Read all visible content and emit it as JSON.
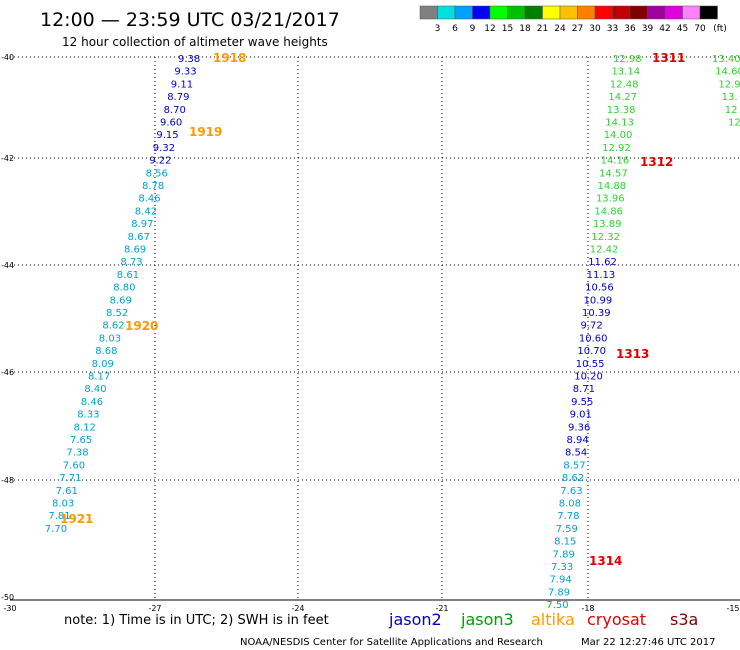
{
  "header": {
    "title": "12:00 — 23:59 UTC 03/21/2017",
    "subtitle": "12 hour collection of altimeter wave heights",
    "color_scale": {
      "labels": [
        "3",
        "6",
        "9",
        "12",
        "15",
        "18",
        "21",
        "24",
        "27",
        "30",
        "33",
        "36",
        "39",
        "42",
        "45",
        "70"
      ],
      "colors": [
        "#808080",
        "#00e0e0",
        "#00a0ff",
        "#0000ff",
        "#00ff00",
        "#00c000",
        "#008000",
        "#ffff00",
        "#ffc000",
        "#ff8000",
        "#ff0000",
        "#c00000",
        "#800000",
        "#a000a0",
        "#e000e0",
        "#ff80ff",
        "#000000"
      ],
      "unit": "(ft)"
    }
  },
  "axes": {
    "lat_labels": [
      "-40",
      "-42",
      "-44",
      "-46",
      "-48",
      "-50"
    ],
    "lon_labels": [
      "-30",
      "-27",
      "-24",
      "-21",
      "-18",
      "-15"
    ]
  },
  "track_colors": {
    "dark_blue": "#0000c8",
    "cyan": "#00a0d0",
    "green": "#30d030",
    "orange": "#ff9900",
    "red": "#e00000"
  },
  "tracks": {
    "west": {
      "dark_blue": [
        "9.38",
        "9.33",
        "9.11",
        "8.79",
        "8.70",
        "9.60",
        "9.15",
        "9.32",
        "9.22"
      ],
      "cyan": [
        "8.56",
        "8.78",
        "8.46",
        "8.42",
        "8.97",
        "8.67",
        "8.69",
        "8.73",
        "8.61",
        "8.80",
        "8.69",
        "8.52",
        "8.62",
        "8.03",
        "8.68",
        "8.09",
        "8.17",
        "8.40",
        "8.46",
        "8.33",
        "8.12",
        "7.65",
        "7.38",
        "7.60",
        "7.71",
        "7.61",
        "8.03",
        "7.81",
        "7.70"
      ]
    },
    "east": {
      "green": [
        "12.98",
        "13.14",
        "12.48",
        "14.27",
        "13.38",
        "14.13",
        "14.00",
        "12.92",
        "14.16",
        "14.57",
        "14.88",
        "13.96",
        "14.86",
        "13.89",
        "12.32",
        "12.42"
      ],
      "dark_blue": [
        "11.62",
        "11.13",
        "10.56",
        "10.99",
        "10.39",
        "9.72",
        "10.60",
        "10.70",
        "10.55",
        "10.20",
        "8.71",
        "9.55",
        "9.01",
        "9.36",
        "8.94",
        "8.54"
      ],
      "cyan": [
        "8.57",
        "8.62",
        "7.63",
        "8.08",
        "7.78",
        "7.59",
        "8.15",
        "7.89",
        "7.33",
        "7.94",
        "7.89",
        "7.50"
      ]
    },
    "far_east": {
      "green": [
        "13.40",
        "14.60",
        "12.9",
        "13.",
        "12",
        "12"
      ]
    }
  },
  "time_labels": {
    "west": [
      "1918",
      "1919",
      "1920",
      "1921"
    ],
    "east": [
      "1311",
      "1312",
      "1313",
      "1314"
    ]
  },
  "footer": {
    "note": "note:  1) Time is in UTC;  2) SWH is in feet",
    "legend": [
      {
        "name": "jason2",
        "color": "#0000c8"
      },
      {
        "name": "jason3",
        "color": "#00a000"
      },
      {
        "name": "altika",
        "color": "#ff9900"
      },
      {
        "name": "cryosat",
        "color": "#e00000"
      },
      {
        "name": "s3a",
        "color": "#800000"
      }
    ],
    "credit": "NOAA/NESDIS Center for Satellite Applications and Research",
    "timestamp": "Mar 22 12:27:46 UTC 2017"
  }
}
